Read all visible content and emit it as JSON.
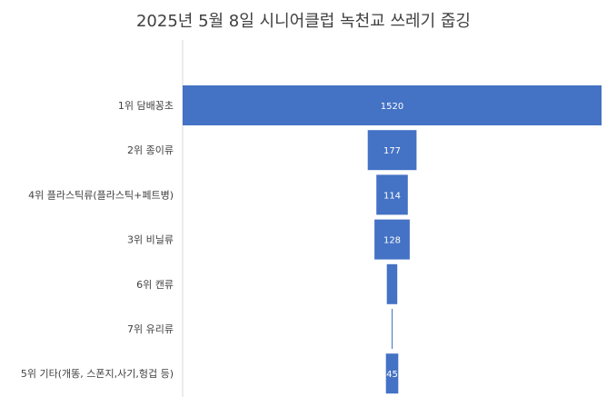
{
  "chart_data": {
    "type": "bar",
    "orientation": "horizontal-centered-funnel",
    "title": "2025년 5월 8일 시니어클럽 녹천교 쓰레기 줍깅",
    "categories": [
      "1위 담배꽁초",
      "2위 종이류",
      "4위 플라스틱류(플라스틱+페트병)",
      "3위 비닐류",
      "6위 캔류",
      "7위 유리류",
      "5위 기타(개똥, 스폰지,사기,헝겁 등)"
    ],
    "values": [
      1520,
      177,
      114,
      128,
      38,
      3,
      45
    ],
    "data_labels": [
      "1520",
      "177",
      "114",
      "128",
      "",
      "",
      "45"
    ],
    "bar_color": "#4472c4",
    "grid": false,
    "legend": "none"
  }
}
